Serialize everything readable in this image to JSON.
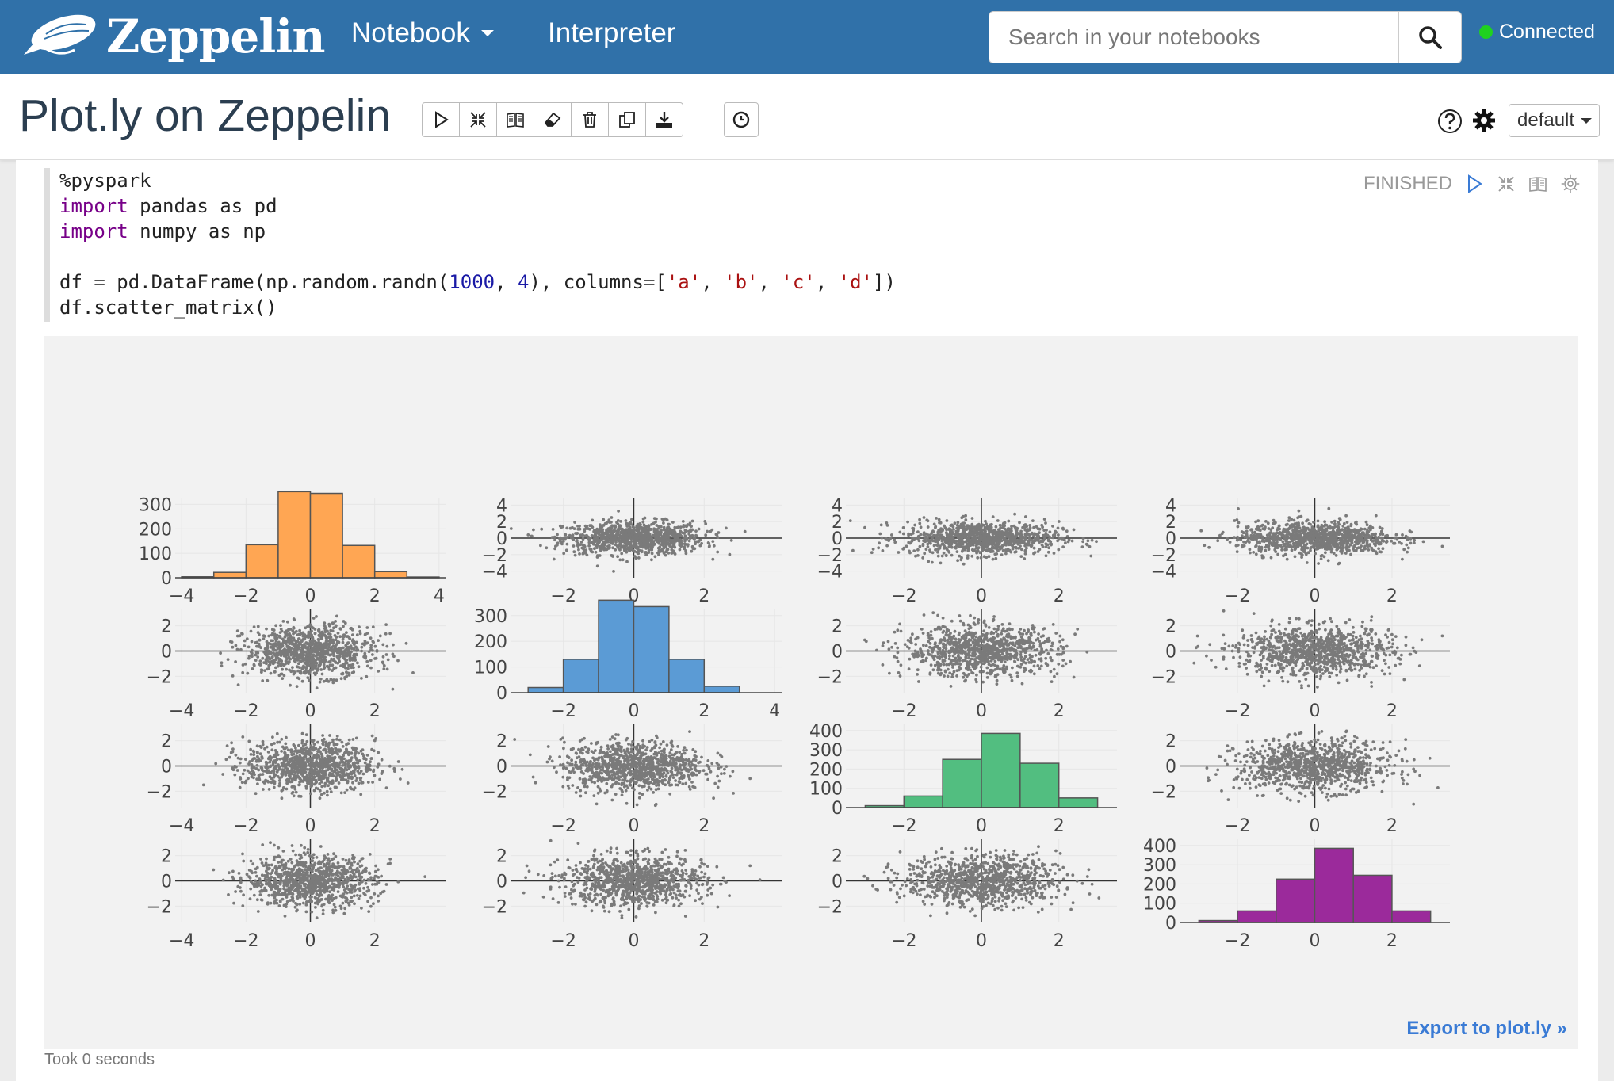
{
  "navbar": {
    "brand": "Zeppelin",
    "notebook_label": "Notebook",
    "interpreter_label": "Interpreter",
    "search_placeholder": "Search in your notebooks",
    "connection_status": "Connected"
  },
  "header": {
    "title": "Plot.ly on Zeppelin",
    "toolbar_icons": [
      "run-all-icon",
      "show-hide-code-icon",
      "show-hide-output-icon",
      "clear-output-icon",
      "remove-notebook-icon",
      "clone-icon",
      "export-icon"
    ],
    "scheduler_icon": "clock-icon",
    "interpreter_binding": "default"
  },
  "paragraph": {
    "status": "FINISHED",
    "code_lines": [
      "%pyspark",
      "import pandas as pd",
      "import numpy as np",
      "",
      "df = pd.DataFrame(np.random.randn(1000, 4), columns=['a', 'b', 'c', 'd'])",
      "df.scatter_matrix()"
    ],
    "export_link": "Export to plot.ly »",
    "took": "Took 0 seconds"
  },
  "colors": {
    "navbar": "#3071a9",
    "hist_a": "#FFA653",
    "hist_b": "#5B9BD5",
    "hist_c": "#52BE80",
    "hist_d": "#9B2A9B",
    "points": "#7a7a7a"
  },
  "chart_data": {
    "type": "scatter",
    "columns": [
      "a",
      "b",
      "c",
      "d"
    ],
    "diagonal": "histogram",
    "histograms": [
      {
        "column": "a",
        "bin_edges": [
          -4,
          -3,
          -2,
          -1,
          0,
          1,
          2,
          3,
          4
        ],
        "counts": [
          4,
          22,
          135,
          352,
          345,
          132,
          25,
          3
        ],
        "y_ticks": [
          0,
          100,
          200,
          300
        ]
      },
      {
        "column": "b",
        "bin_edges": [
          -3,
          -2,
          -1,
          0,
          1,
          2,
          3,
          4
        ],
        "counts": [
          20,
          130,
          360,
          335,
          130,
          25,
          0
        ],
        "y_ticks": [
          0,
          100,
          200,
          300
        ]
      },
      {
        "column": "c",
        "bin_edges": [
          -3,
          -2,
          -1,
          0,
          1,
          2,
          3
        ],
        "counts": [
          10,
          60,
          250,
          385,
          230,
          50
        ],
        "y_ticks": [
          0,
          100,
          200,
          300,
          400
        ]
      },
      {
        "column": "d",
        "bin_edges": [
          -3,
          -2,
          -1,
          0,
          1,
          2,
          3
        ],
        "counts": [
          10,
          60,
          225,
          385,
          245,
          60
        ],
        "y_ticks": [
          0,
          100,
          200,
          300,
          400
        ]
      }
    ],
    "x_ticks": {
      "a": [
        -4,
        -2,
        0,
        2
      ],
      "b": [
        -2,
        0,
        2
      ],
      "c": [
        -2,
        0,
        2
      ],
      "d": [
        -2,
        0,
        2
      ]
    },
    "hist_x_ticks": {
      "a": [
        -4,
        -2,
        0,
        2,
        4
      ],
      "b": [
        -2,
        0,
        2,
        4
      ],
      "c": [
        -2,
        0,
        2
      ],
      "d": [
        -2,
        0,
        2
      ]
    },
    "scatter_y_ticks_row0": [
      -4,
      -2,
      0,
      2,
      4
    ],
    "scatter_y_ticks": [
      -2,
      0,
      2
    ],
    "points_per_panel": 1000
  }
}
